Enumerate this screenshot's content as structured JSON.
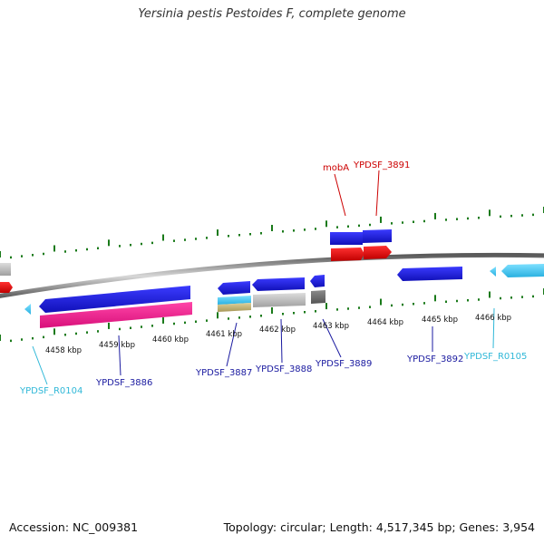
{
  "title": "Yersinia pestis Pestoides F, complete genome",
  "footer": {
    "accession": "Accession: NC_009381",
    "summary": "Topology: circular; Length: 4,517,345 bp; Genes: 3,954"
  },
  "ticks": [
    "4458 kbp",
    "4459 kbp",
    "4460 kbp",
    "4461 kbp",
    "4462 kbp",
    "4463 kbp",
    "4464 kbp",
    "4465 kbp",
    "4466 kbp"
  ],
  "labels": {
    "mobA": "mobA",
    "ypdsf_3891": "YPDSF_3891",
    "ypdsf_r0104": "YPDSF_R0104",
    "ypdsf_3886": "YPDSF_3886",
    "ypdsf_3887": "YPDSF_3887",
    "ypdsf_3888": "YPDSF_3888",
    "ypdsf_3889": "YPDSF_3889",
    "ypdsf_3892": "YPDSF_3892",
    "ypdsf_r0105": "YPDSF_R0105"
  },
  "colors": {
    "cds_blue": "#1a1adf",
    "gene_red": "#e01010",
    "rrna_pink": "#ee1a8c",
    "trna_cyan": "#40c8f0",
    "misc_gray": "#b8b8b8",
    "dark_gray": "#707070",
    "tan": "#c8b878",
    "tick_green": "#1a7a1a",
    "backbone": "#8a8a8a",
    "label_red": "#cc0000",
    "label_blue": "#1a1aa0",
    "label_cyan": "#30b8d8"
  }
}
